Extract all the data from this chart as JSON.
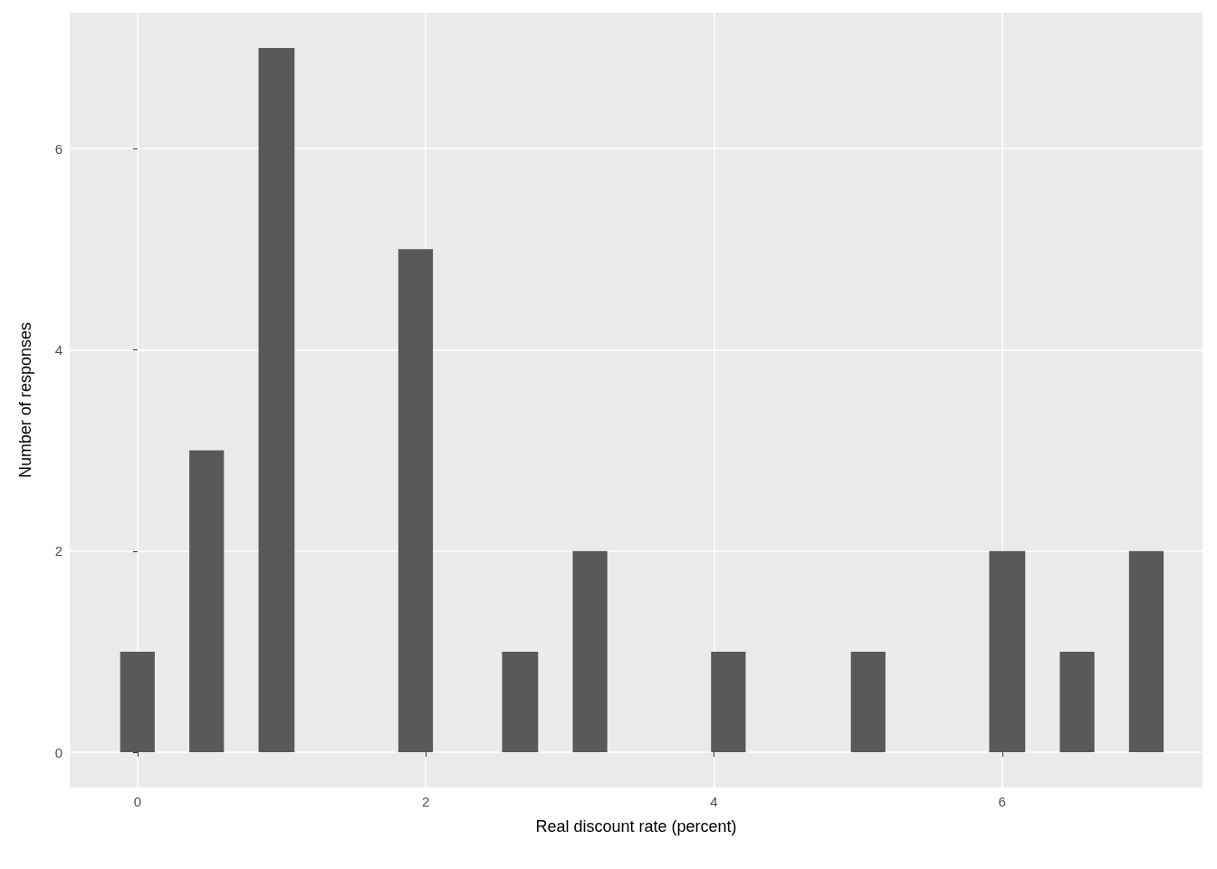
{
  "chart_data": {
    "type": "histogram",
    "xlabel": "Real discount rate (percent)",
    "ylabel": "Number of responses",
    "bins": [
      -0.12,
      0.12,
      0.36,
      0.6,
      0.84,
      1.09,
      1.81,
      2.05,
      2.53,
      2.78,
      3.02,
      3.26,
      3.98,
      4.22,
      4.95,
      5.19,
      5.91,
      6.16,
      6.4,
      6.64,
      6.88,
      7.12
    ],
    "values": [
      1,
      0,
      3,
      0,
      7,
      0,
      5,
      0,
      1,
      0,
      2,
      0,
      1,
      0,
      1,
      0,
      2,
      0,
      1,
      0,
      2
    ],
    "color": "#595959",
    "xlim": [
      -0.47,
      7.39
    ],
    "xticks": [
      0,
      2,
      4,
      6
    ],
    "ylim": [
      -0.35,
      7.35
    ],
    "yticks": [
      0,
      2,
      4,
      6
    ],
    "grid": true
  }
}
